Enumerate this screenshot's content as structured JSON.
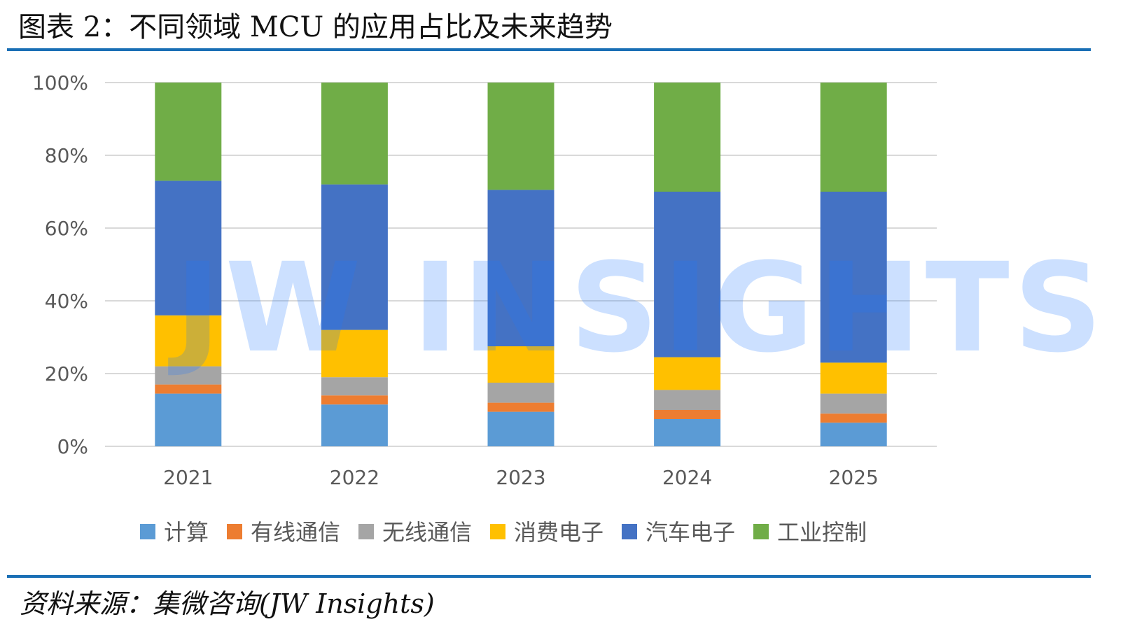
{
  "title": "图表 2：不同领域 MCU 的应用占比及未来趋势",
  "source": "资料来源：集微咨询(JW Insights)",
  "watermark": "JW INSIGHTS",
  "chart_data": {
    "type": "bar",
    "stacked": true,
    "normalized": true,
    "categories": [
      "2021",
      "2022",
      "2023",
      "2024",
      "2025"
    ],
    "y_ticks": [
      "0%",
      "20%",
      "40%",
      "60%",
      "80%",
      "100%"
    ],
    "ylim": [
      0,
      100
    ],
    "grid": true,
    "legend_position": "bottom",
    "series": [
      {
        "name": "计算",
        "color": "#5b9bd5",
        "values": [
          14.5,
          11.5,
          9.5,
          7.5,
          6.5
        ]
      },
      {
        "name": "有线通信",
        "color": "#ed7d31",
        "values": [
          2.5,
          2.5,
          2.5,
          2.5,
          2.5
        ]
      },
      {
        "name": "无线通信",
        "color": "#a5a5a5",
        "values": [
          5.0,
          5.0,
          5.5,
          5.5,
          5.5
        ]
      },
      {
        "name": "消费电子",
        "color": "#ffc000",
        "values": [
          14.0,
          13.0,
          10.0,
          9.0,
          8.5
        ]
      },
      {
        "name": "汽车电子",
        "color": "#4472c4",
        "values": [
          37.0,
          40.0,
          43.0,
          45.5,
          47.0
        ]
      },
      {
        "name": "工业控制",
        "color": "#70ad47",
        "values": [
          27.0,
          28.0,
          29.5,
          30.0,
          30.0
        ]
      }
    ]
  }
}
